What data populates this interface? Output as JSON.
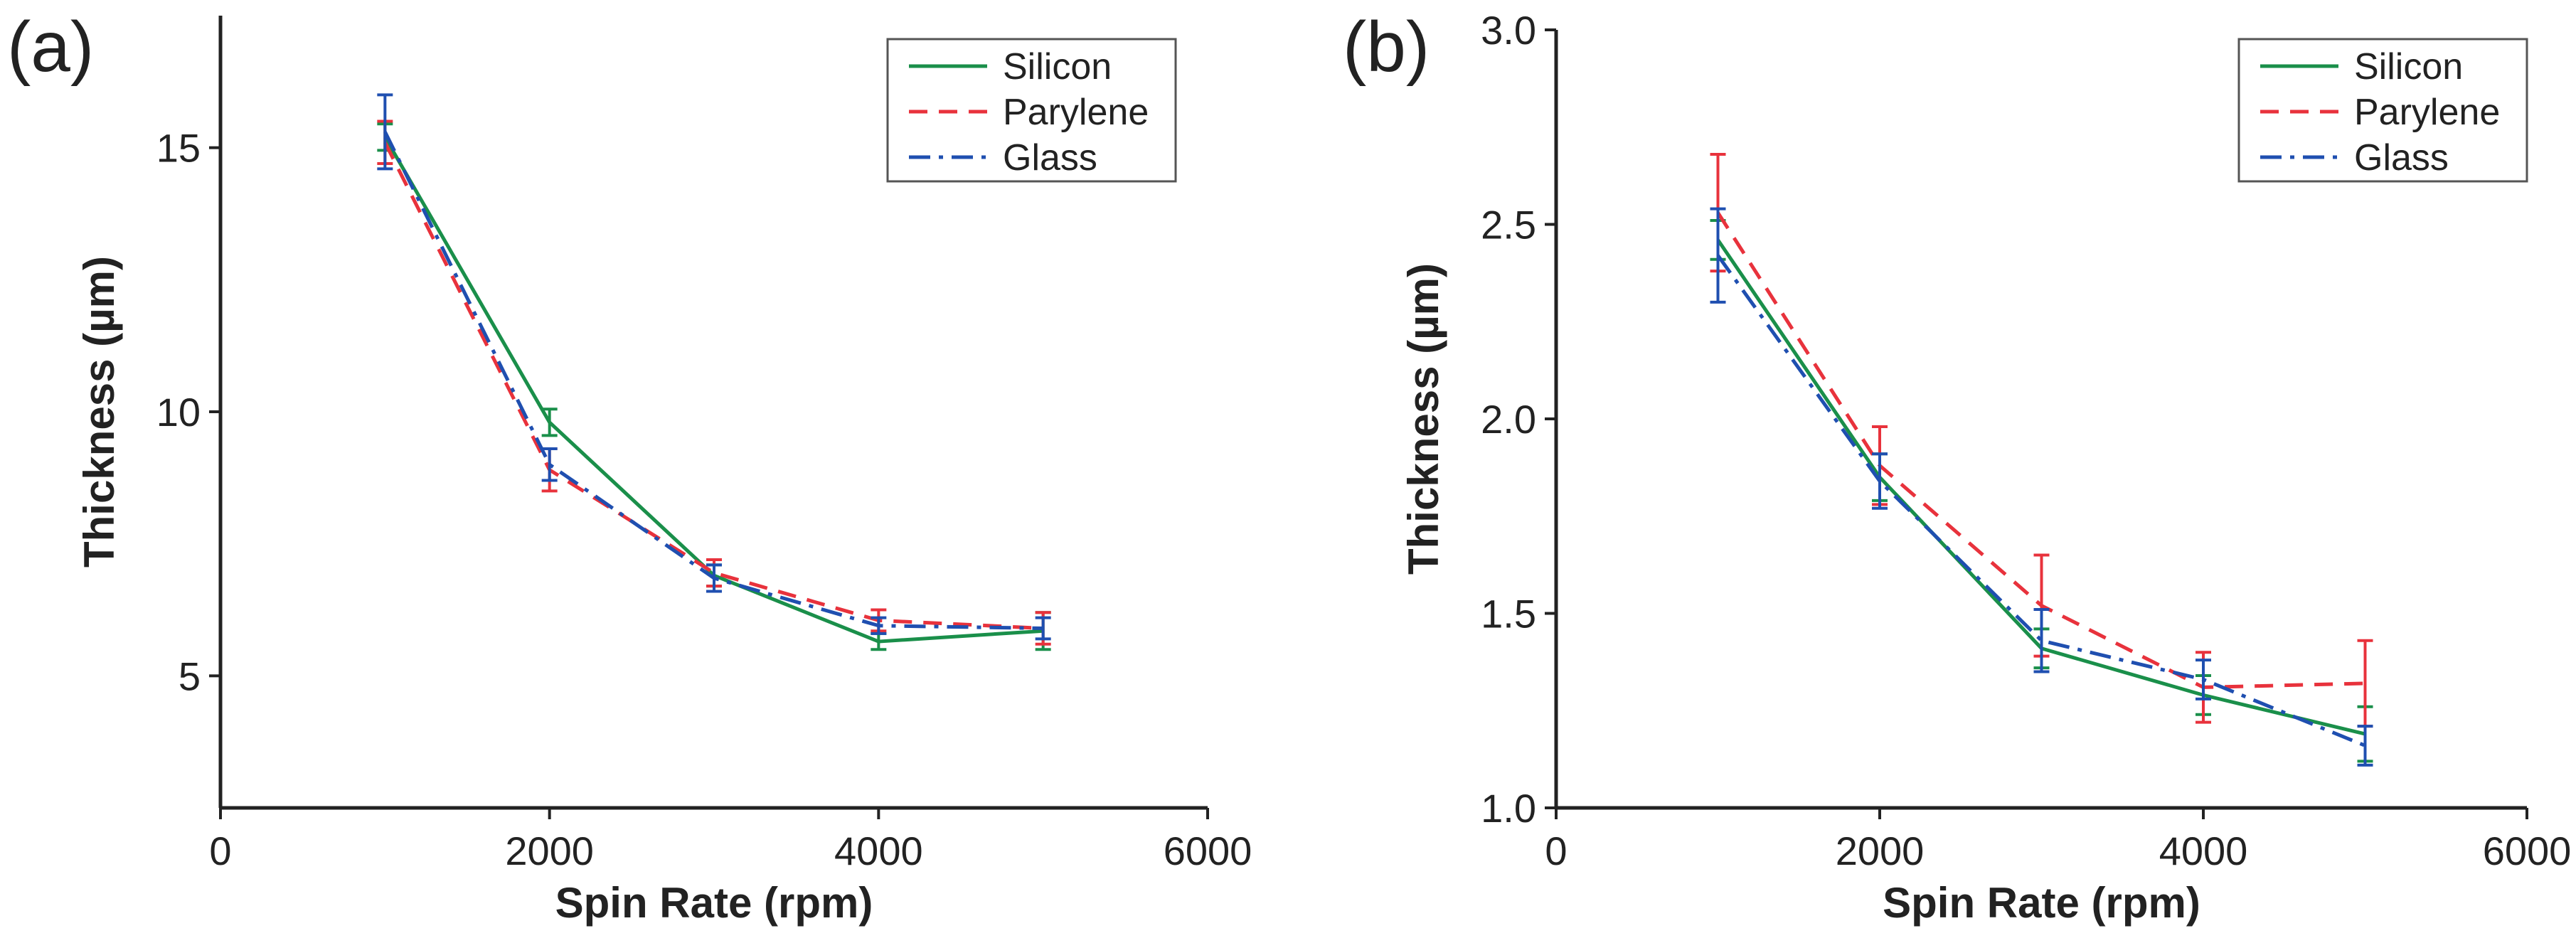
{
  "colors": {
    "silicon": "#1a8f4a",
    "parylene": "#e8323c",
    "glass": "#1f4fb0",
    "axis": "#222222",
    "legend_border": "#555555"
  },
  "chart_data": [
    {
      "type": "line",
      "panel_label": "(a)",
      "xlabel": "Spin Rate (rpm)",
      "ylabel": "Thickness (µm)",
      "xlim": [
        0,
        6000
      ],
      "ylim": [
        2.5,
        17.5
      ],
      "xticks": [
        0,
        2000,
        4000,
        6000
      ],
      "yticks": [
        5,
        10,
        15
      ],
      "x": [
        1000,
        2000,
        3000,
        4000,
        5000
      ],
      "legend_position": "top-right",
      "series": [
        {
          "name": "Silicon",
          "color": "#1a8f4a",
          "dash": "solid",
          "values": [
            15.2,
            9.8,
            6.9,
            5.65,
            5.85
          ],
          "errors": [
            0.25,
            0.25,
            0.2,
            0.15,
            0.35
          ]
        },
        {
          "name": "Parylene",
          "color": "#e8323c",
          "dash": "dashed",
          "values": [
            15.1,
            8.9,
            6.95,
            6.05,
            5.9
          ],
          "errors": [
            0.4,
            0.4,
            0.25,
            0.2,
            0.3
          ]
        },
        {
          "name": "Glass",
          "color": "#1f4fb0",
          "dash": "dashdot",
          "values": [
            15.3,
            9.0,
            6.85,
            5.95,
            5.9
          ],
          "errors": [
            0.7,
            0.3,
            0.25,
            0.15,
            0.2
          ]
        }
      ]
    },
    {
      "type": "line",
      "panel_label": "(b)",
      "xlabel": "Spin Rate (rpm)",
      "ylabel": "Thickness (µm)",
      "xlim": [
        0,
        6000
      ],
      "ylim": [
        1.0,
        3.0
      ],
      "xticks": [
        0,
        2000,
        4000,
        6000
      ],
      "yticks": [
        1.0,
        1.5,
        2.0,
        2.5,
        3.0
      ],
      "x": [
        1000,
        2000,
        3000,
        4000,
        5000
      ],
      "legend_position": "top-right",
      "series": [
        {
          "name": "Silicon",
          "color": "#1a8f4a",
          "dash": "solid",
          "values": [
            2.46,
            1.85,
            1.41,
            1.29,
            1.19
          ],
          "errors": [
            0.05,
            0.06,
            0.05,
            0.05,
            0.07
          ]
        },
        {
          "name": "Parylene",
          "color": "#e8323c",
          "dash": "dashed",
          "values": [
            2.53,
            1.88,
            1.52,
            1.31,
            1.32
          ],
          "errors": [
            0.15,
            0.1,
            0.13,
            0.09,
            0.11
          ]
        },
        {
          "name": "Glass",
          "color": "#1f4fb0",
          "dash": "dashdot",
          "values": [
            2.42,
            1.84,
            1.43,
            1.33,
            1.16
          ],
          "errors": [
            0.12,
            0.07,
            0.08,
            0.05,
            0.05
          ]
        }
      ]
    }
  ]
}
